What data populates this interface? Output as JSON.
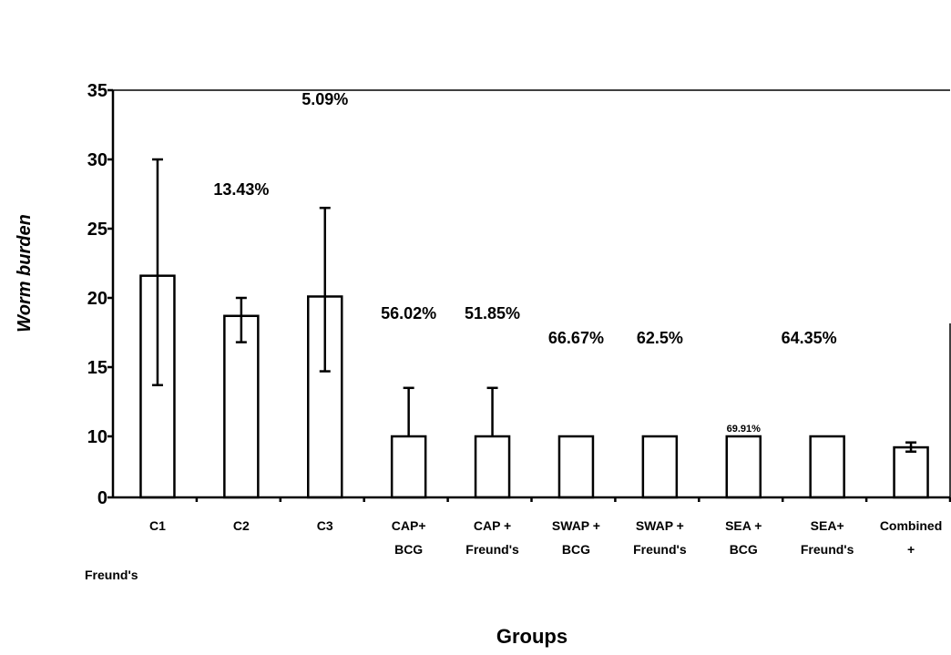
{
  "chart_data": {
    "type": "bar",
    "categories": [
      [
        "C1"
      ],
      [
        "C2"
      ],
      [
        "C3"
      ],
      [
        "CAP+",
        "BCG"
      ],
      [
        "CAP +",
        "Freund's"
      ],
      [
        "SWAP +",
        "BCG"
      ],
      [
        "SWAP +",
        "Freund's"
      ],
      [
        "SEA +",
        "BCG"
      ],
      [
        "SEA+",
        "Freund's"
      ],
      [
        "Combined",
        "+"
      ]
    ],
    "values": [
      21.6,
      18.7,
      20.1,
      10,
      10,
      10,
      10,
      10,
      10,
      8.2
    ],
    "error_upper": [
      30.0,
      20.0,
      26.5,
      13.5,
      13.5,
      10,
      10,
      10,
      10,
      9.0
    ],
    "error_lower": [
      13.7,
      16.8,
      14.7,
      10,
      10,
      10,
      10,
      10,
      10,
      7.5
    ],
    "percent_labels": [
      "",
      "13.43%",
      "5.09%",
      "56.02%",
      "51.85%",
      "66.67%",
      "62.5%",
      "69.91%",
      "64.35%",
      ""
    ],
    "xlabel": "Groups",
    "ylabel": "Worm burden",
    "yticks": [
      "0",
      "10",
      "15",
      "20",
      "25",
      "30",
      "35"
    ],
    "extra_label": "Freund's",
    "ylim": [
      0,
      35
    ],
    "axis_break": true,
    "grid": false
  }
}
